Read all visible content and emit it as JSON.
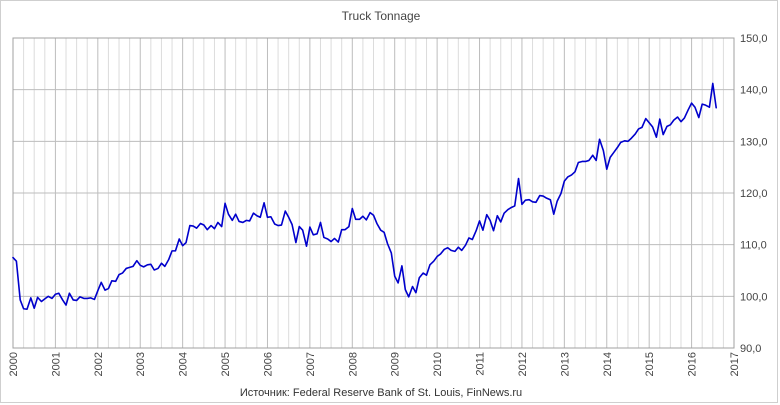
{
  "chart_data": {
    "type": "line",
    "title": "Truck Tonnage",
    "source": "Источник: Federal Reserve Bank of St. Louis, FinNews.ru",
    "xlabel": "",
    "ylabel": "",
    "xlim": [
      2000,
      2017
    ],
    "ylim": [
      90,
      150
    ],
    "y_ticks": [
      90,
      100,
      110,
      120,
      130,
      140,
      150
    ],
    "y_tick_labels": [
      "90,0",
      "100,0",
      "110,0",
      "120,0",
      "130,0",
      "140,0",
      "150,0"
    ],
    "x_ticks": [
      2000,
      2001,
      2002,
      2003,
      2004,
      2005,
      2006,
      2007,
      2008,
      2009,
      2010,
      2011,
      2012,
      2013,
      2014,
      2015,
      2016,
      2017
    ],
    "x_tick_labels": [
      "2000",
      "2001",
      "2002",
      "2003",
      "2004",
      "2005",
      "2006",
      "2007",
      "2008",
      "2009",
      "2010",
      "2011",
      "2012",
      "2013",
      "2014",
      "2015",
      "2016",
      "2017"
    ],
    "y_axis_position": "right",
    "grid": true,
    "minor_vertical_grid": "quarterly",
    "line_color": "#0000cc",
    "x": [
      2000.0,
      2000.08,
      2000.17,
      2000.25,
      2000.33,
      2000.42,
      2000.5,
      2000.58,
      2000.67,
      2000.75,
      2000.83,
      2000.92,
      2001.0,
      2001.08,
      2001.17,
      2001.25,
      2001.33,
      2001.42,
      2001.5,
      2001.58,
      2001.67,
      2001.75,
      2001.83,
      2001.92,
      2002.0,
      2002.08,
      2002.17,
      2002.25,
      2002.33,
      2002.42,
      2002.5,
      2002.58,
      2002.67,
      2002.75,
      2002.83,
      2002.92,
      2003.0,
      2003.08,
      2003.17,
      2003.25,
      2003.33,
      2003.42,
      2003.5,
      2003.58,
      2003.67,
      2003.75,
      2003.83,
      2003.92,
      2004.0,
      2004.08,
      2004.17,
      2004.25,
      2004.33,
      2004.42,
      2004.5,
      2004.58,
      2004.67,
      2004.75,
      2004.83,
      2004.92,
      2005.0,
      2005.08,
      2005.17,
      2005.25,
      2005.33,
      2005.42,
      2005.5,
      2005.58,
      2005.67,
      2005.75,
      2005.83,
      2005.92,
      2006.0,
      2006.08,
      2006.17,
      2006.25,
      2006.33,
      2006.42,
      2006.5,
      2006.58,
      2006.67,
      2006.75,
      2006.83,
      2006.92,
      2007.0,
      2007.08,
      2007.17,
      2007.25,
      2007.33,
      2007.42,
      2007.5,
      2007.58,
      2007.67,
      2007.75,
      2007.83,
      2007.92,
      2008.0,
      2008.08,
      2008.17,
      2008.25,
      2008.33,
      2008.42,
      2008.5,
      2008.58,
      2008.67,
      2008.75,
      2008.83,
      2008.92,
      2009.0,
      2009.08,
      2009.17,
      2009.25,
      2009.33,
      2009.42,
      2009.5,
      2009.58,
      2009.67,
      2009.75,
      2009.83,
      2009.92,
      2010.0,
      2010.08,
      2010.17,
      2010.25,
      2010.33,
      2010.42,
      2010.5,
      2010.58,
      2010.67,
      2010.75,
      2010.83,
      2010.92,
      2011.0,
      2011.08,
      2011.17,
      2011.25,
      2011.33,
      2011.42,
      2011.5,
      2011.58,
      2011.67,
      2011.75,
      2011.83,
      2011.92,
      2012.0,
      2012.08,
      2012.17,
      2012.25,
      2012.33,
      2012.42,
      2012.5,
      2012.58,
      2012.67,
      2012.75,
      2012.83,
      2012.92,
      2013.0,
      2013.08,
      2013.17,
      2013.25,
      2013.33,
      2013.42,
      2013.5,
      2013.58,
      2013.67,
      2013.75,
      2013.83,
      2013.92,
      2014.0,
      2014.08,
      2014.17,
      2014.25,
      2014.33,
      2014.42,
      2014.5,
      2014.58,
      2014.67,
      2014.75,
      2014.83,
      2014.92,
      2015.0,
      2015.08,
      2015.17,
      2015.25,
      2015.33,
      2015.42,
      2015.5,
      2015.58,
      2015.67,
      2015.75,
      2015.83,
      2015.92,
      2016.0,
      2016.08,
      2016.17,
      2016.25,
      2016.33,
      2016.42,
      2016.5,
      2016.58
    ],
    "y": [
      107.5,
      106.8,
      99.3,
      97.6,
      97.5,
      99.7,
      97.7,
      99.8,
      99.0,
      99.5,
      100.0,
      99.6,
      100.4,
      100.6,
      99.3,
      98.3,
      100.6,
      99.3,
      99.2,
      99.9,
      99.6,
      99.6,
      99.7,
      99.4,
      101.1,
      102.7,
      101.2,
      101.5,
      103.0,
      102.9,
      104.2,
      104.5,
      105.4,
      105.6,
      105.8,
      106.9,
      106.0,
      105.7,
      106.1,
      106.2,
      105.1,
      105.4,
      106.4,
      105.8,
      107.1,
      108.8,
      108.8,
      111.1,
      109.8,
      110.4,
      113.7,
      113.6,
      113.2,
      114.1,
      113.8,
      112.9,
      113.7,
      113.1,
      114.3,
      113.5,
      118.0,
      115.9,
      114.7,
      115.9,
      114.5,
      114.3,
      114.7,
      114.6,
      116.1,
      115.6,
      115.3,
      118.1,
      115.3,
      115.4,
      114.0,
      113.7,
      113.8,
      116.5,
      115.3,
      113.9,
      110.4,
      113.5,
      112.8,
      109.7,
      113.4,
      111.9,
      112.1,
      114.3,
      111.4,
      111.1,
      110.6,
      111.2,
      110.5,
      112.9,
      112.9,
      113.5,
      117.0,
      114.9,
      114.9,
      115.5,
      114.8,
      116.2,
      115.7,
      114.1,
      112.8,
      112.4,
      110.2,
      108.4,
      103.9,
      102.6,
      105.9,
      101.3,
      99.9,
      101.9,
      100.7,
      103.6,
      104.5,
      104.1,
      106.1,
      106.8,
      107.7,
      108.2,
      109.1,
      109.4,
      108.9,
      108.7,
      109.5,
      108.9,
      109.9,
      111.3,
      111.0,
      112.7,
      114.6,
      112.8,
      115.8,
      114.7,
      112.7,
      115.6,
      114.4,
      116.1,
      116.8,
      117.2,
      117.5,
      122.8,
      117.8,
      118.6,
      118.7,
      118.3,
      118.2,
      119.5,
      119.4,
      119.0,
      118.7,
      115.9,
      118.4,
      119.9,
      122.3,
      123.1,
      123.5,
      124.1,
      125.9,
      126.1,
      126.1,
      126.3,
      127.3,
      126.3,
      130.4,
      128.2,
      124.6,
      126.9,
      127.9,
      128.8,
      129.8,
      130.1,
      130.0,
      130.6,
      131.4,
      132.4,
      132.7,
      134.4,
      133.6,
      132.8,
      130.8,
      134.3,
      131.3,
      132.9,
      133.2,
      134.1,
      134.7,
      133.8,
      134.5,
      136.1,
      137.4,
      136.6,
      134.6,
      137.2,
      137.0,
      136.6,
      141.2,
      136.5
    ]
  }
}
